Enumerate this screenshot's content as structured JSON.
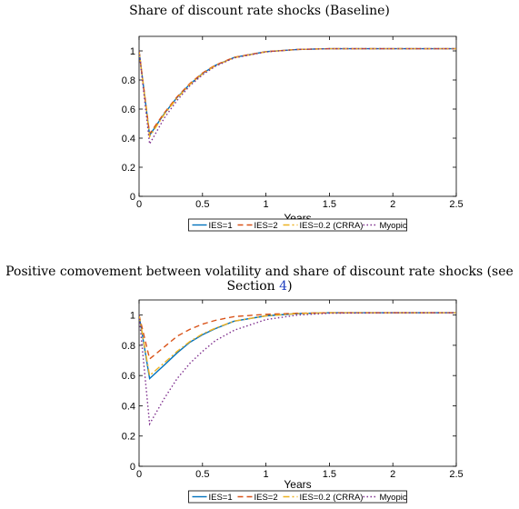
{
  "chart_data": [
    {
      "type": "line",
      "title": "Share of discount rate shocks (Baseline)",
      "xlabel": "Years",
      "ylabel": "",
      "xlim": [
        0,
        2.5
      ],
      "ylim": [
        0,
        1.1
      ],
      "xticks": [
        "0",
        "0.5",
        "1",
        "1.5",
        "2",
        "2.5"
      ],
      "yticks": [
        "0",
        "0.2",
        "0.4",
        "0.6",
        "0.8",
        "1"
      ],
      "grid": false,
      "legend_position": "bottom-outside",
      "series": [
        {
          "name": "IES=1",
          "color": "#0072bd",
          "dash": "solid",
          "x": [
            0,
            0.083,
            0.2,
            0.3,
            0.4,
            0.5,
            0.6,
            0.75,
            1,
            1.25,
            1.5,
            2,
            2.5
          ],
          "y": [
            1.0,
            0.42,
            0.57,
            0.68,
            0.77,
            0.845,
            0.9,
            0.955,
            0.995,
            1.01,
            1.015,
            1.015,
            1.015
          ]
        },
        {
          "name": "IES=2",
          "color": "#d95319",
          "dash": "dashed",
          "x": [
            0,
            0.083,
            0.2,
            0.3,
            0.4,
            0.5,
            0.6,
            0.75,
            1,
            1.25,
            1.5,
            2,
            2.5
          ],
          "y": [
            1.0,
            0.43,
            0.575,
            0.685,
            0.775,
            0.848,
            0.902,
            0.956,
            0.995,
            1.01,
            1.015,
            1.015,
            1.015
          ]
        },
        {
          "name": "IES=0.2 (CRRA)",
          "color": "#edb120",
          "dash": "dashdot",
          "x": [
            0,
            0.083,
            0.2,
            0.3,
            0.4,
            0.5,
            0.6,
            0.75,
            1,
            1.25,
            1.5,
            2,
            2.5
          ],
          "y": [
            1.0,
            0.41,
            0.565,
            0.675,
            0.768,
            0.842,
            0.898,
            0.954,
            0.994,
            1.01,
            1.015,
            1.015,
            1.015
          ]
        },
        {
          "name": "Myopic",
          "color": "#7e2f8e",
          "dash": "dotted",
          "x": [
            0,
            0.083,
            0.2,
            0.3,
            0.4,
            0.5,
            0.6,
            0.75,
            1,
            1.25,
            1.5,
            2,
            2.5
          ],
          "y": [
            1.0,
            0.36,
            0.54,
            0.66,
            0.76,
            0.835,
            0.894,
            0.952,
            0.993,
            1.01,
            1.015,
            1.015,
            1.015
          ]
        }
      ]
    },
    {
      "type": "line",
      "title": "Positive comovement between volatility and share of discount rate shocks (see Section 4)",
      "title_parts": [
        "Positive comovement between volatility and share of discount rate shocks (see Section ",
        "4",
        ")"
      ],
      "xlabel": "Years",
      "ylabel": "",
      "xlim": [
        0,
        2.5
      ],
      "ylim": [
        0,
        1.1
      ],
      "xticks": [
        "0",
        "0.5",
        "1",
        "1.5",
        "2",
        "2.5"
      ],
      "yticks": [
        "0",
        "0.2",
        "0.4",
        "0.6",
        "0.8",
        "1"
      ],
      "grid": false,
      "legend_position": "bottom-outside",
      "series": [
        {
          "name": "IES=1",
          "color": "#0072bd",
          "dash": "solid",
          "x": [
            0,
            0.083,
            0.2,
            0.3,
            0.4,
            0.5,
            0.6,
            0.75,
            1,
            1.25,
            1.5,
            2,
            2.5
          ],
          "y": [
            1.0,
            0.58,
            0.67,
            0.75,
            0.82,
            0.87,
            0.91,
            0.96,
            0.995,
            1.01,
            1.015,
            1.015,
            1.015
          ]
        },
        {
          "name": "IES=2",
          "color": "#d95319",
          "dash": "dashed",
          "x": [
            0,
            0.083,
            0.2,
            0.3,
            0.4,
            0.5,
            0.6,
            0.75,
            1,
            1.25,
            1.5,
            2,
            2.5
          ],
          "y": [
            1.0,
            0.71,
            0.79,
            0.86,
            0.905,
            0.94,
            0.965,
            0.99,
            1.005,
            1.012,
            1.015,
            1.015,
            1.015
          ]
        },
        {
          "name": "IES=0.2 (CRRA)",
          "color": "#edb120",
          "dash": "dashdot",
          "x": [
            0,
            0.083,
            0.2,
            0.3,
            0.4,
            0.5,
            0.6,
            0.75,
            1,
            1.25,
            1.5,
            2,
            2.5
          ],
          "y": [
            1.0,
            0.6,
            0.685,
            0.76,
            0.825,
            0.875,
            0.913,
            0.96,
            0.995,
            1.01,
            1.015,
            1.015,
            1.015
          ]
        },
        {
          "name": "Myopic",
          "color": "#7e2f8e",
          "dash": "dotted",
          "x": [
            0,
            0.083,
            0.2,
            0.3,
            0.4,
            0.5,
            0.6,
            0.75,
            1,
            1.25,
            1.5,
            2,
            2.5
          ],
          "y": [
            1.0,
            0.28,
            0.45,
            0.58,
            0.68,
            0.76,
            0.83,
            0.9,
            0.97,
            1.0,
            1.012,
            1.015,
            1.015
          ]
        }
      ]
    }
  ]
}
